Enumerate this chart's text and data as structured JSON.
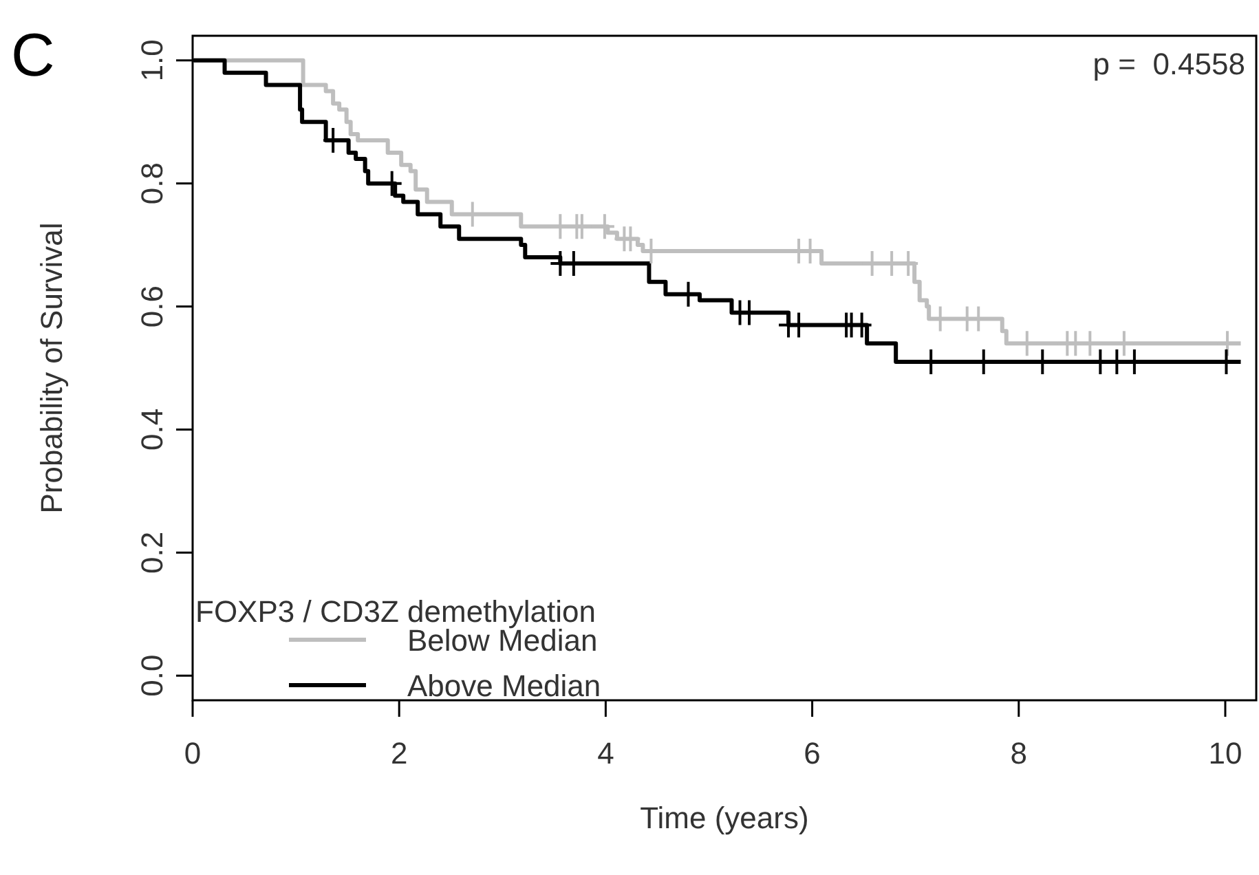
{
  "chart_data": {
    "type": "step",
    "xlabel": "Time (years)",
    "ylabel": "Probability of Survival",
    "legend_title": "FOXP3 / CD3Z demethylation",
    "legend": "bottom left",
    "annotations": [
      "p =  0.4558",
      "C"
    ],
    "xlim": [
      0,
      10.3
    ],
    "ylim": [
      -0.04,
      1.04
    ],
    "xticks": [
      0,
      2,
      4,
      6,
      8,
      10
    ],
    "yticks": [
      {
        "value": 0,
        "label": "0.0"
      },
      0.2,
      0.4,
      0.6,
      0.8,
      {
        "value": 1,
        "label": "1.0"
      }
    ],
    "series": [
      {
        "name": "Below Median",
        "color": "#bebebe",
        "x": [
          0,
          1.07,
          1.29,
          1.36,
          1.42,
          1.49,
          1.53,
          1.6,
          1.89,
          2.02,
          2.11,
          2.16,
          2.27,
          2.51,
          3.18,
          4.02,
          4.11,
          4.31,
          4.36,
          6.09,
          6.99,
          7.04,
          7.11,
          7.13,
          7.84,
          7.88,
          10.15
        ],
        "values": [
          1,
          0.96,
          0.95,
          0.93,
          0.92,
          0.9,
          0.88,
          0.87,
          0.85,
          0.83,
          0.82,
          0.79,
          0.77,
          0.75,
          0.73,
          0.72,
          0.71,
          0.7,
          0.69,
          0.67,
          0.64,
          0.61,
          0.6,
          0.58,
          0.56,
          0.54,
          0.54
        ]
      },
      {
        "name": "Above Median",
        "color": "#000000",
        "x": [
          0,
          0.31,
          0.71,
          1.04,
          1.06,
          1.29,
          1.51,
          1.58,
          1.67,
          1.7,
          1.96,
          2.04,
          2.18,
          2.4,
          2.58,
          3.18,
          3.22,
          3.56,
          4.42,
          4.58,
          4.91,
          5.22,
          5.77,
          6.53,
          6.81,
          10.15
        ],
        "values": [
          1,
          0.98,
          0.96,
          0.92,
          0.9,
          0.87,
          0.85,
          0.84,
          0.82,
          0.8,
          0.78,
          0.77,
          0.75,
          0.73,
          0.71,
          0.7,
          0.68,
          0.67,
          0.64,
          0.62,
          0.61,
          0.59,
          0.57,
          0.54,
          0.51,
          0.51
        ]
      },
      {
        "color": "#bebebe",
        "type": "scatter",
        "marker": "cross",
        "x": [
          2.71,
          3.56,
          3.72,
          3.77,
          3.99,
          4.18,
          4.24,
          4.44,
          5.87,
          5.98,
          6.58,
          6.77,
          6.93,
          7.24,
          7.5,
          7.61,
          8.08,
          8.47,
          8.55,
          8.69,
          9.02,
          10.02
        ],
        "values": [
          0.75,
          0.73,
          0.73,
          0.73,
          0.73,
          0.71,
          0.71,
          0.69,
          0.69,
          0.69,
          0.67,
          0.67,
          0.67,
          0.58,
          0.58,
          0.58,
          0.54,
          0.54,
          0.54,
          0.54,
          0.54,
          0.54
        ]
      },
      {
        "color": "#000000",
        "type": "scatter",
        "marker": "cross",
        "x": [
          1.36,
          1.93,
          3.56,
          3.69,
          4.8,
          5.3,
          5.39,
          5.77,
          5.87,
          6.33,
          6.38,
          6.48,
          7.15,
          7.66,
          8.23,
          8.79,
          8.95,
          9.12,
          10.01
        ],
        "values": [
          0.87,
          0.8,
          0.67,
          0.67,
          0.62,
          0.59,
          0.59,
          0.57,
          0.57,
          0.57,
          0.57,
          0.57,
          0.51,
          0.51,
          0.51,
          0.51,
          0.51,
          0.51,
          0.51
        ]
      }
    ]
  }
}
